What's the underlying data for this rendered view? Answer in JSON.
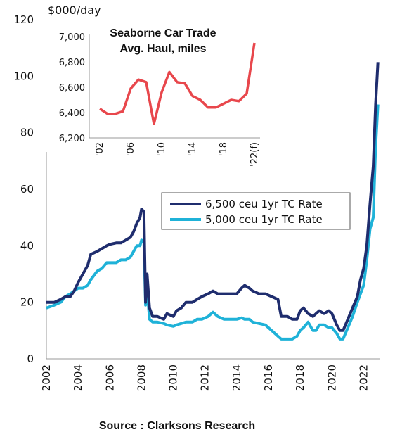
{
  "chart_data": [
    {
      "type": "line",
      "unit_label": "$000/day",
      "xlim": [
        2002,
        2023
      ],
      "ylim": [
        0,
        120
      ],
      "x_ticks": [
        "2002",
        "2004",
        "2006",
        "2008",
        "2010",
        "2012",
        "2014",
        "2016",
        "2018",
        "2020",
        "2022"
      ],
      "y_ticks": [
        "0",
        "20",
        "40",
        "60",
        "80",
        "100",
        "120"
      ],
      "legend_position": "middle-right",
      "series": [
        {
          "name": "6,500 ceu 1yr TC Rate",
          "color": "#1f2d6e",
          "points": [
            [
              2002.0,
              20
            ],
            [
              2002.5,
              20
            ],
            [
              2002.9,
              21
            ],
            [
              2003.2,
              22
            ],
            [
              2003.5,
              22
            ],
            [
              2003.75,
              24
            ],
            [
              2004.0,
              27
            ],
            [
              2004.3,
              30
            ],
            [
              2004.6,
              33
            ],
            [
              2004.8,
              37
            ],
            [
              2005.2,
              38
            ],
            [
              2005.5,
              39
            ],
            [
              2005.8,
              40
            ],
            [
              2006.0,
              40.5
            ],
            [
              2006.4,
              41
            ],
            [
              2006.7,
              41
            ],
            [
              2007.0,
              42
            ],
            [
              2007.3,
              43
            ],
            [
              2007.5,
              45
            ],
            [
              2007.7,
              48
            ],
            [
              2007.9,
              50
            ],
            [
              2008.0,
              53
            ],
            [
              2008.15,
              52
            ],
            [
              2008.25,
              20
            ],
            [
              2008.35,
              30
            ],
            [
              2008.5,
              18
            ],
            [
              2008.7,
              15
            ],
            [
              2009.0,
              15
            ],
            [
              2009.4,
              14
            ],
            [
              2009.6,
              16
            ],
            [
              2010.0,
              15
            ],
            [
              2010.2,
              17
            ],
            [
              2010.5,
              18
            ],
            [
              2010.8,
              20
            ],
            [
              2011.2,
              20
            ],
            [
              2011.5,
              21
            ],
            [
              2011.8,
              22
            ],
            [
              2012.2,
              23
            ],
            [
              2012.5,
              24
            ],
            [
              2012.8,
              23
            ],
            [
              2013.2,
              23
            ],
            [
              2013.6,
              23
            ],
            [
              2014.0,
              23
            ],
            [
              2014.3,
              25
            ],
            [
              2014.5,
              26
            ],
            [
              2014.8,
              25
            ],
            [
              2015.0,
              24
            ],
            [
              2015.4,
              23
            ],
            [
              2015.8,
              23
            ],
            [
              2016.2,
              22
            ],
            [
              2016.6,
              21
            ],
            [
              2016.8,
              15
            ],
            [
              2017.2,
              15
            ],
            [
              2017.5,
              14
            ],
            [
              2017.8,
              14
            ],
            [
              2018.0,
              17
            ],
            [
              2018.2,
              18
            ],
            [
              2018.5,
              16
            ],
            [
              2018.8,
              15
            ],
            [
              2019.0,
              16
            ],
            [
              2019.2,
              17
            ],
            [
              2019.5,
              16
            ],
            [
              2019.8,
              17
            ],
            [
              2020.0,
              16
            ],
            [
              2020.3,
              12
            ],
            [
              2020.5,
              10
            ],
            [
              2020.7,
              10
            ],
            [
              2021.0,
              14
            ],
            [
              2021.3,
              18
            ],
            [
              2021.6,
              22
            ],
            [
              2021.8,
              28
            ],
            [
              2022.0,
              32
            ],
            [
              2022.2,
              40
            ],
            [
              2022.4,
              55
            ],
            [
              2022.6,
              68
            ],
            [
              2022.75,
              90
            ],
            [
              2022.9,
              105
            ]
          ]
        },
        {
          "name": "5,000 ceu 1yr TC Rate",
          "color": "#1fb2d8",
          "points": [
            [
              2002.0,
              18
            ],
            [
              2002.5,
              19
            ],
            [
              2002.9,
              20
            ],
            [
              2003.2,
              22
            ],
            [
              2003.5,
              23
            ],
            [
              2003.75,
              24
            ],
            [
              2004.0,
              25
            ],
            [
              2004.3,
              25
            ],
            [
              2004.6,
              26
            ],
            [
              2004.8,
              28
            ],
            [
              2005.2,
              31
            ],
            [
              2005.5,
              32
            ],
            [
              2005.8,
              34
            ],
            [
              2006.0,
              34
            ],
            [
              2006.4,
              34
            ],
            [
              2006.7,
              35
            ],
            [
              2007.0,
              35
            ],
            [
              2007.3,
              36
            ],
            [
              2007.5,
              38
            ],
            [
              2007.7,
              40
            ],
            [
              2007.9,
              40
            ],
            [
              2008.0,
              42
            ],
            [
              2008.15,
              41
            ],
            [
              2008.25,
              19
            ],
            [
              2008.35,
              25
            ],
            [
              2008.5,
              14
            ],
            [
              2008.7,
              13
            ],
            [
              2009.0,
              13
            ],
            [
              2009.4,
              12.5
            ],
            [
              2009.6,
              12
            ],
            [
              2010.0,
              11.5
            ],
            [
              2010.2,
              12
            ],
            [
              2010.5,
              12.5
            ],
            [
              2010.8,
              13
            ],
            [
              2011.2,
              13
            ],
            [
              2011.5,
              14
            ],
            [
              2011.8,
              14
            ],
            [
              2012.2,
              15
            ],
            [
              2012.5,
              16.5
            ],
            [
              2012.8,
              15
            ],
            [
              2013.2,
              14
            ],
            [
              2013.6,
              14
            ],
            [
              2014.0,
              14
            ],
            [
              2014.3,
              14.5
            ],
            [
              2014.5,
              14
            ],
            [
              2014.8,
              14
            ],
            [
              2015.0,
              13
            ],
            [
              2015.4,
              12.5
            ],
            [
              2015.8,
              12
            ],
            [
              2016.2,
              10
            ],
            [
              2016.6,
              8
            ],
            [
              2016.8,
              7
            ],
            [
              2017.2,
              7
            ],
            [
              2017.5,
              7
            ],
            [
              2017.8,
              8
            ],
            [
              2018.0,
              10
            ],
            [
              2018.2,
              11
            ],
            [
              2018.5,
              13
            ],
            [
              2018.8,
              10
            ],
            [
              2019.0,
              10
            ],
            [
              2019.2,
              12
            ],
            [
              2019.5,
              12
            ],
            [
              2019.8,
              11
            ],
            [
              2020.0,
              11
            ],
            [
              2020.3,
              9
            ],
            [
              2020.5,
              7
            ],
            [
              2020.7,
              7
            ],
            [
              2021.0,
              11
            ],
            [
              2021.3,
              15
            ],
            [
              2021.6,
              20
            ],
            [
              2021.8,
              23
            ],
            [
              2022.0,
              26
            ],
            [
              2022.2,
              35
            ],
            [
              2022.4,
              46
            ],
            [
              2022.6,
              50
            ],
            [
              2022.75,
              75
            ],
            [
              2022.9,
              90
            ]
          ]
        }
      ]
    },
    {
      "type": "line",
      "title_lines": [
        "Seaborne Car Trade",
        "Avg. Haul, miles"
      ],
      "xlim": [
        2002,
        2022
      ],
      "ylim": [
        6200,
        7000
      ],
      "x_ticks": [
        "'02",
        "'06",
        "'10",
        "'14",
        "'18",
        "'22(f)"
      ],
      "y_ticks": [
        "6,200",
        "6,400",
        "6,600",
        "6,800",
        "7,000"
      ],
      "series": [
        {
          "color": "#e8474c",
          "points": [
            [
              2002,
              6430
            ],
            [
              2003,
              6390
            ],
            [
              2004,
              6390
            ],
            [
              2005,
              6410
            ],
            [
              2006,
              6590
            ],
            [
              2007,
              6660
            ],
            [
              2008,
              6640
            ],
            [
              2009,
              6310
            ],
            [
              2010,
              6560
            ],
            [
              2011,
              6720
            ],
            [
              2012,
              6640
            ],
            [
              2013,
              6630
            ],
            [
              2014,
              6530
            ],
            [
              2015,
              6500
            ],
            [
              2016,
              6440
            ],
            [
              2017,
              6440
            ],
            [
              2018,
              6470
            ],
            [
              2019,
              6500
            ],
            [
              2020,
              6490
            ],
            [
              2021,
              6550
            ],
            [
              2022,
              6950
            ]
          ]
        }
      ]
    }
  ],
  "footer": {
    "source": "Source : Clarksons Research"
  }
}
